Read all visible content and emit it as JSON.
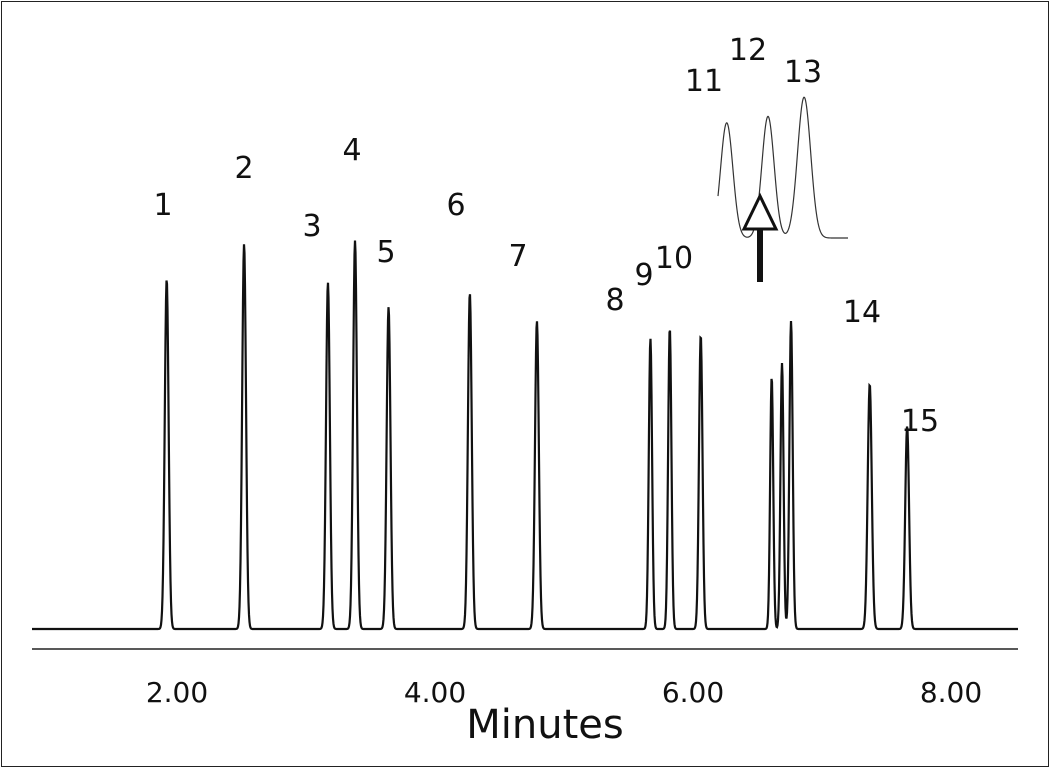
{
  "chart_data": {
    "type": "line",
    "title": "",
    "xlabel": "Minutes",
    "ylabel": "",
    "xlim": [
      0.9,
      8.85
    ],
    "ylim": [
      0,
      1.15
    ],
    "grid": false,
    "legend": "none",
    "x_ticks": [
      "2.00",
      "4.00",
      "6.00",
      "8.00"
    ],
    "x_tick_values": [
      2.0,
      4.0,
      6.0,
      8.0
    ],
    "peaks": [
      {
        "label": "1",
        "rt": 1.92,
        "height": 1.0,
        "width": 0.035
      },
      {
        "label": "2",
        "rt": 2.52,
        "height": 1.1,
        "width": 0.035
      },
      {
        "label": "3",
        "rt": 3.17,
        "height": 0.99,
        "width": 0.035
      },
      {
        "label": "4",
        "rt": 3.38,
        "height": 1.11,
        "width": 0.035
      },
      {
        "label": "5",
        "rt": 3.64,
        "height": 0.92,
        "width": 0.035
      },
      {
        "label": "6",
        "rt": 4.27,
        "height": 0.96,
        "width": 0.035
      },
      {
        "label": "7",
        "rt": 4.79,
        "height": 0.88,
        "width": 0.035
      },
      {
        "label": "8",
        "rt": 5.67,
        "height": 0.83,
        "width": 0.03
      },
      {
        "label": "9",
        "rt": 5.82,
        "height": 0.86,
        "width": 0.03
      },
      {
        "label": "10",
        "rt": 6.06,
        "height": 0.84,
        "width": 0.032
      },
      {
        "label": "11",
        "rt": 6.61,
        "height": 0.72,
        "width": 0.028
      },
      {
        "label": "12",
        "rt": 6.69,
        "height": 0.76,
        "width": 0.028
      },
      {
        "label": "13",
        "rt": 6.76,
        "height": 0.88,
        "width": 0.03
      },
      {
        "label": "14",
        "rt": 7.37,
        "height": 0.7,
        "width": 0.037
      },
      {
        "label": "15",
        "rt": 7.66,
        "height": 0.58,
        "width": 0.035
      }
    ]
  },
  "annotations": {
    "inset_labels": [
      "11",
      "12",
      "13"
    ]
  },
  "colors": {
    "trace": "#111111",
    "axis": "#222222"
  }
}
